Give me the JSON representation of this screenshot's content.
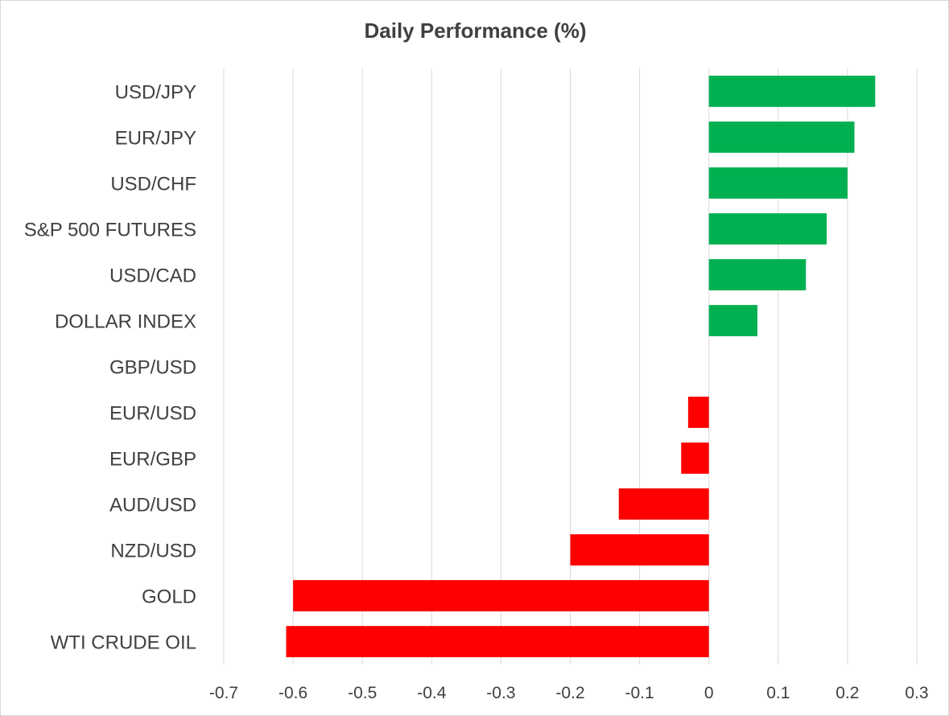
{
  "chart_data": {
    "type": "bar",
    "orientation": "horizontal",
    "title": "Daily Performance (%)",
    "xlabel": "",
    "ylabel": "",
    "categories": [
      "USD/JPY",
      "EUR/JPY",
      "USD/CHF",
      "S&P 500 FUTURES",
      "USD/CAD",
      "DOLLAR INDEX",
      "GBP/USD",
      "EUR/USD",
      "EUR/GBP",
      "AUD/USD",
      "NZD/USD",
      "GOLD",
      "WTI CRUDE OIL"
    ],
    "values": [
      0.24,
      0.21,
      0.2,
      0.17,
      0.14,
      0.07,
      0.0,
      -0.03,
      -0.04,
      -0.13,
      -0.2,
      -0.6,
      -0.61
    ],
    "xlim": [
      -0.7,
      0.3
    ],
    "xticks": [
      "-0.7",
      "-0.6",
      "-0.5",
      "-0.4",
      "-0.3",
      "-0.2",
      "-0.1",
      "0",
      "0.1",
      "0.2",
      "0.3"
    ],
    "grid": "vertical",
    "legend": "none",
    "colors": {
      "positive": "#00b050",
      "negative": "#ff0000",
      "grid": "#d9d9d9",
      "text": "#404040"
    }
  }
}
